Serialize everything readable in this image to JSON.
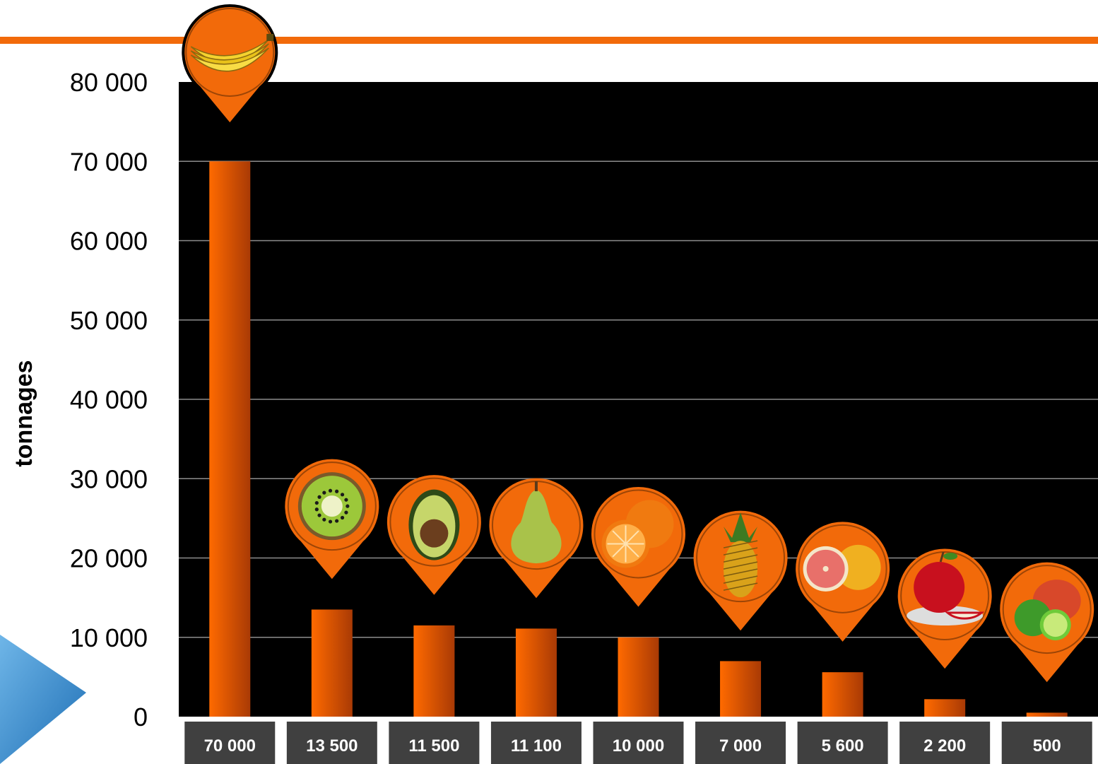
{
  "colors": {
    "accent": "#F26A0A",
    "bar_light": "#FF6A00",
    "bar_dark": "#A93A05",
    "plot_bg": "#000000",
    "gridline": "#8C8C8C",
    "label_box": "#404040",
    "pin": "#F26A0A",
    "triangle": "#2B83C8"
  },
  "chart_data": {
    "type": "bar",
    "ylabel": "tonnages",
    "ylim": [
      0,
      80000
    ],
    "yticks": [
      0,
      10000,
      20000,
      30000,
      40000,
      50000,
      60000,
      70000,
      80000
    ],
    "ytick_labels": [
      "0",
      "10 000",
      "20 000",
      "30 000",
      "40 000",
      "50 000",
      "60 000",
      "70 000",
      "80 000"
    ],
    "grid": true,
    "values": [
      70000,
      13500,
      11500,
      11100,
      10000,
      7000,
      5600,
      2200,
      500
    ],
    "value_labels": [
      "70 000",
      "13 500",
      "11 500",
      "11 100",
      "10 000",
      "7 000",
      "5 600",
      "2 200",
      "500"
    ],
    "icons": [
      "banana-icon",
      "kiwi-icon",
      "avocado-icon",
      "pear-icon",
      "orange-icon",
      "pineapple-icon",
      "grapefruit-icon",
      "apple-icon",
      "lime-mango-icon"
    ]
  }
}
